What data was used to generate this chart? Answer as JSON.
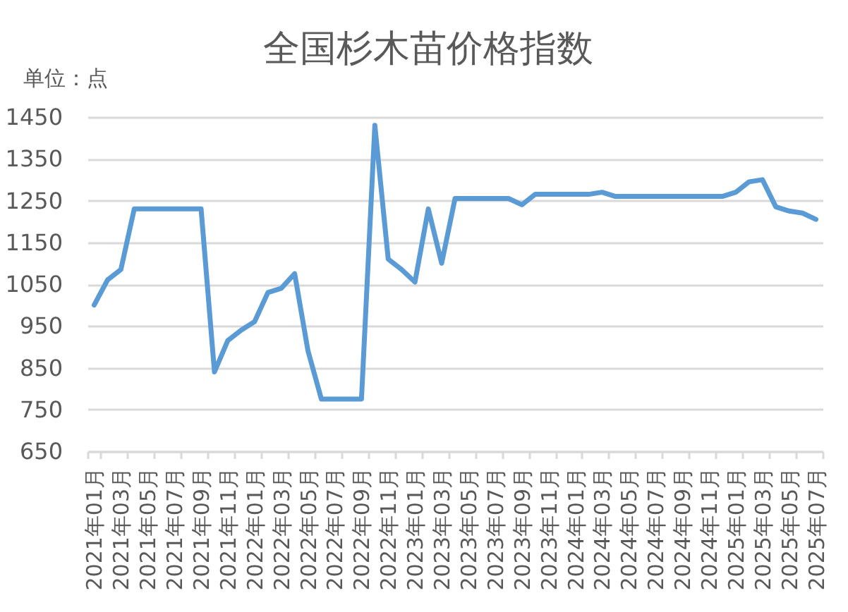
{
  "chart_data": {
    "type": "line",
    "title": "全国杉木苗价格指数",
    "ylabel": "单位：点",
    "categories": [
      "2021年01月",
      null,
      "2021年03月",
      null,
      "2021年05月",
      null,
      "2021年07月",
      null,
      "2021年09月",
      null,
      "2021年11月",
      null,
      "2022年01月",
      null,
      "2022年03月",
      null,
      "2022年05月",
      null,
      "2022年07月",
      null,
      "2022年09月",
      null,
      "2022年11月",
      null,
      "2023年01月",
      null,
      "2023年03月",
      null,
      "2023年05月",
      null,
      "2023年07月",
      null,
      "2023年09月",
      null,
      "2023年11月",
      null,
      "2024年01月",
      null,
      "2024年03月",
      null,
      "2024年05月",
      null,
      "2024年07月",
      null,
      "2024年09月",
      null,
      "2024年11月",
      null,
      "2025年01月",
      null,
      "2025年03月",
      null,
      "2025年05月",
      null,
      "2025年07月"
    ],
    "values": [
      1000,
      1060,
      1085,
      1230,
      1230,
      1230,
      1230,
      1230,
      1230,
      840,
      915,
      940,
      960,
      1030,
      1040,
      1075,
      890,
      775,
      775,
      775,
      775,
      1430,
      1110,
      1085,
      1055,
      1230,
      1100,
      1255,
      1255,
      1255,
      1255,
      1255,
      1240,
      1265,
      1265,
      1265,
      1265,
      1265,
      1270,
      1260,
      1260,
      1260,
      1260,
      1260,
      1260,
      1260,
      1260,
      1260,
      1270,
      1295,
      1300,
      1235,
      1225,
      1220,
      1205
    ],
    "color": "#5b9bd5",
    "ylim": [
      650,
      1450
    ],
    "yticks": [
      650,
      750,
      850,
      950,
      1050,
      1150,
      1250,
      1350,
      1450
    ],
    "grid": "y"
  }
}
